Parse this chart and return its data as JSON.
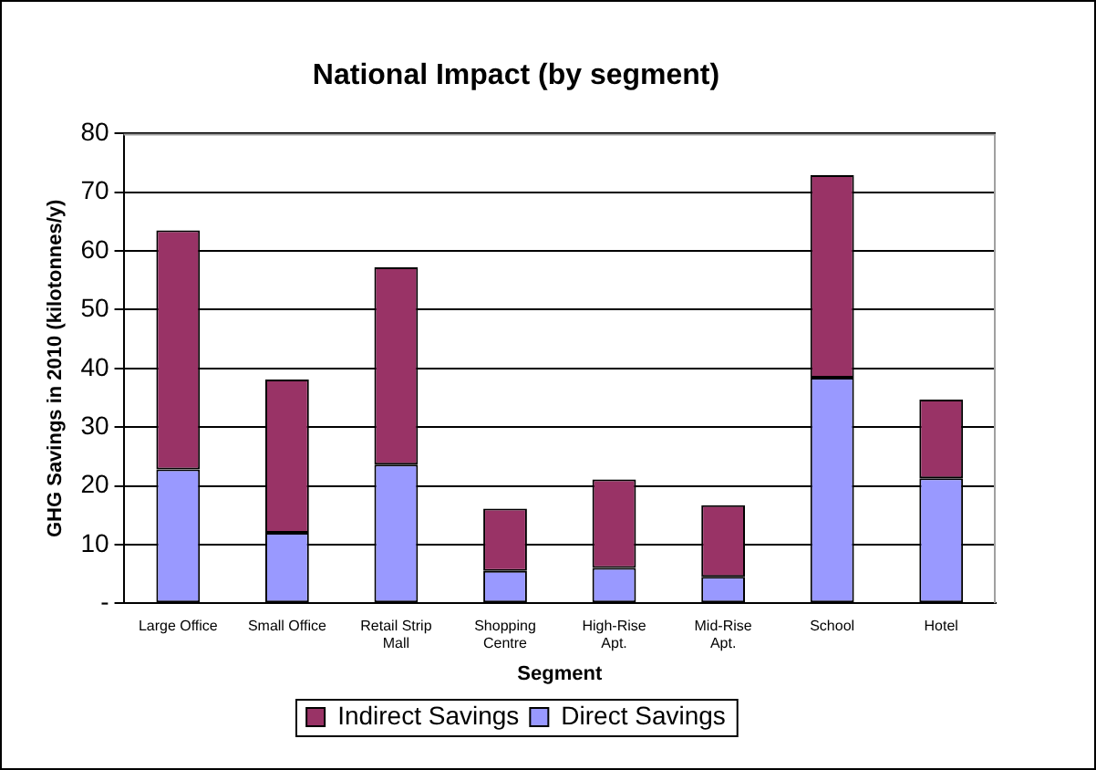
{
  "chart_data": {
    "type": "bar",
    "title": "National Impact (by segment)",
    "xlabel": "Segment",
    "ylabel": "GHG Savings in 2010 (kilotonnes/y)",
    "categories": [
      "Large Office",
      "Small Office",
      "Retail Strip Mall",
      "Shopping Centre",
      "High-Rise Apt.",
      "Mid-Rise Apt.",
      "School",
      "Hotel"
    ],
    "series": [
      {
        "name": "Direct Savings",
        "color": "#9999ff",
        "values": [
          22.8,
          12.0,
          23.6,
          5.5,
          6.0,
          4.5,
          38.4,
          21.3
        ]
      },
      {
        "name": "Indirect Savings",
        "color": "#993366",
        "values": [
          40.7,
          26.1,
          33.6,
          10.6,
          15.1,
          12.2,
          34.5,
          13.4
        ]
      }
    ],
    "stacked": true,
    "ylim": [
      0,
      80
    ],
    "yticks": [
      {
        "value": 0,
        "label": "-"
      },
      10,
      20,
      30,
      40,
      50,
      60,
      70,
      80
    ],
    "grid": "y",
    "legend": "bottom"
  }
}
